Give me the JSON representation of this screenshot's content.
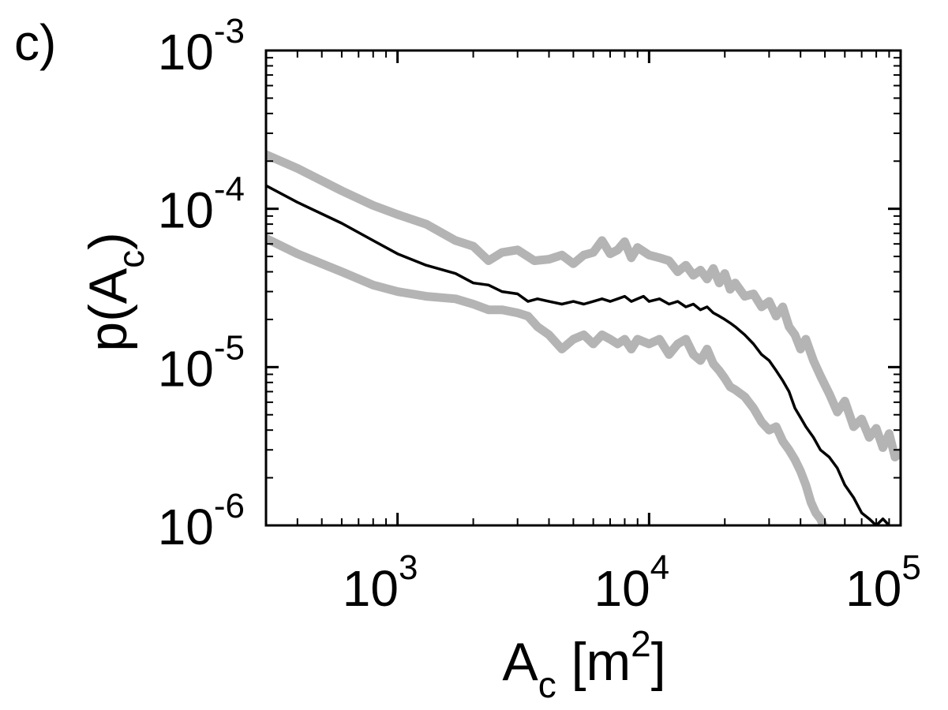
{
  "panel_label": "c)",
  "chart_data": {
    "type": "line",
    "xlabel": {
      "base": "A",
      "sub": "c",
      "unit_pre": " [m",
      "unit_sup": "2",
      "unit_post": "]"
    },
    "ylabel": {
      "pre": "p(A",
      "sub": "c",
      "post": ")"
    },
    "x_scale": "log",
    "y_scale": "log",
    "xlim": [
      300,
      100000
    ],
    "ylim": [
      1e-06,
      0.001
    ],
    "grid": false,
    "x_ticks": [
      {
        "value": 1000,
        "base": "10",
        "exp": "3"
      },
      {
        "value": 10000,
        "base": "10",
        "exp": "4"
      },
      {
        "value": 100000,
        "base": "10",
        "exp": "5"
      }
    ],
    "y_ticks": [
      {
        "value": 0.001,
        "base": "10",
        "exp": "-3"
      },
      {
        "value": 0.0001,
        "base": "10",
        "exp": "-4"
      },
      {
        "value": 1e-05,
        "base": "10",
        "exp": "-5"
      },
      {
        "value": 1e-06,
        "base": "10",
        "exp": "-6"
      }
    ],
    "series": [
      {
        "color": "#b4b4b4",
        "style": "thick",
        "x": [
          300,
          400,
          600,
          800,
          1000,
          1300,
          1700,
          2000,
          2300,
          2600,
          3000,
          3500,
          4000,
          4500,
          5000,
          5500,
          6000,
          6500,
          7000,
          7500,
          8000,
          8500,
          9000,
          10000,
          11000,
          12000,
          13000,
          14000,
          15000,
          16000,
          17000,
          18000,
          19000,
          20000,
          21000,
          22000,
          24000,
          26000,
          28000,
          30000,
          32000,
          34000,
          36000,
          38000,
          40000,
          42000,
          45000,
          48000,
          52000,
          56000,
          60000,
          65000,
          70000,
          75000,
          80000,
          85000,
          90000,
          95000,
          100000
        ],
        "y": [
          0.00022,
          0.00018,
          0.00013,
          0.000105,
          9.2e-05,
          8e-05,
          6.3e-05,
          5.8e-05,
          4.7e-05,
          5.3e-05,
          5.5e-05,
          4.7e-05,
          4.8e-05,
          5.1e-05,
          4.5e-05,
          5.1e-05,
          5.3e-05,
          6.3e-05,
          5.2e-05,
          5.5e-05,
          6.2e-05,
          4.9e-05,
          5.7e-05,
          5.1e-05,
          4.9e-05,
          4.7e-05,
          4e-05,
          4.4e-05,
          3.8e-05,
          4.1e-05,
          3.6e-05,
          4.2e-05,
          3.4e-05,
          3.9e-05,
          3.1e-05,
          3.4e-05,
          2.8e-05,
          2.9e-05,
          2.4e-05,
          2.6e-05,
          2.1e-05,
          2.4e-05,
          1.8e-05,
          1.6e-05,
          1.3e-05,
          1.5e-05,
          1.1e-05,
          8.8e-06,
          6.8e-06,
          5.2e-06,
          6.1e-06,
          4.2e-06,
          4.7e-06,
          3.6e-06,
          4.1e-06,
          3.1e-06,
          3.8e-06,
          2.7e-06,
          2.9e-06
        ]
      },
      {
        "color": "#000000",
        "style": "thin",
        "x": [
          300,
          400,
          600,
          800,
          1000,
          1300,
          1700,
          2000,
          2300,
          2600,
          3000,
          3300,
          3600,
          4000,
          4500,
          5000,
          5500,
          6000,
          6500,
          7000,
          7500,
          8000,
          8500,
          9000,
          9500,
          10000,
          11000,
          12000,
          13000,
          14000,
          15000,
          16000,
          17000,
          18000,
          19000,
          20000,
          21000,
          22000,
          24000,
          26000,
          28000,
          30000,
          32000,
          34000,
          36000,
          38000,
          40000,
          42000,
          45000,
          48000,
          52000,
          56000,
          60000,
          65000,
          70000,
          75000,
          80000,
          85000,
          90000
        ],
        "y": [
          0.00014,
          0.00011,
          8.1e-05,
          6.3e-05,
          5.2e-05,
          4.4e-05,
          3.9e-05,
          3.4e-05,
          3.3e-05,
          3e-05,
          2.9e-05,
          2.6e-05,
          2.7e-05,
          2.6e-05,
          2.5e-05,
          2.6e-05,
          2.5e-05,
          2.6e-05,
          2.7e-05,
          2.6e-05,
          2.7e-05,
          2.8e-05,
          2.6e-05,
          2.7e-05,
          2.8e-05,
          2.6e-05,
          2.7e-05,
          2.5e-05,
          2.6e-05,
          2.4e-05,
          2.5e-05,
          2.3e-05,
          2.4e-05,
          2.2e-05,
          2.1e-05,
          2e-05,
          1.9e-05,
          1.8e-05,
          1.6e-05,
          1.4e-05,
          1.2e-05,
          1.1e-05,
          9.5e-06,
          8.2e-06,
          7e-06,
          5.5e-06,
          4.8e-06,
          4.2e-06,
          3.6e-06,
          3e-06,
          2.7e-06,
          2.3e-06,
          1.8e-06,
          1.5e-06,
          1.2e-06,
          1.1e-06,
          1e-06,
          1.1e-06,
          1e-06
        ]
      },
      {
        "color": "#b4b4b4",
        "style": "thick",
        "x": [
          300,
          400,
          600,
          800,
          1000,
          1300,
          1700,
          2000,
          2300,
          2600,
          3000,
          3300,
          3600,
          4000,
          4500,
          5000,
          5500,
          6000,
          6500,
          7000,
          7500,
          8000,
          8500,
          9000,
          10000,
          11000,
          12000,
          13000,
          14000,
          15000,
          16000,
          17000,
          18000,
          19000,
          20000,
          21000,
          22000,
          24000,
          26000,
          28000,
          30000,
          32000,
          34000,
          36000,
          38000,
          40000,
          42000,
          44000,
          46000,
          48000,
          50000,
          52000
        ],
        "y": [
          6.5e-05,
          5.2e-05,
          4e-05,
          3.3e-05,
          3e-05,
          2.8e-05,
          2.7e-05,
          2.5e-05,
          2.3e-05,
          2.3e-05,
          2.2e-05,
          2.1e-05,
          1.8e-05,
          1.6e-05,
          1.3e-05,
          1.5e-05,
          1.6e-05,
          1.4e-05,
          1.6e-05,
          1.5e-05,
          1.4e-05,
          1.5e-05,
          1.3e-05,
          1.5e-05,
          1.4e-05,
          1.5e-05,
          1.2e-05,
          1.4e-05,
          1.5e-05,
          1.2e-05,
          1.1e-05,
          1.3e-05,
          1.05e-05,
          9.5e-06,
          8.5e-06,
          7.5e-06,
          7.2e-06,
          6.5e-06,
          5.5e-06,
          4.5e-06,
          4e-06,
          4.2e-06,
          3.4e-06,
          3e-06,
          2.6e-06,
          2.2e-06,
          1.8e-06,
          1.4e-06,
          1.2e-06,
          1.1e-06,
          9.5e-07,
          9.2e-07
        ]
      }
    ]
  }
}
